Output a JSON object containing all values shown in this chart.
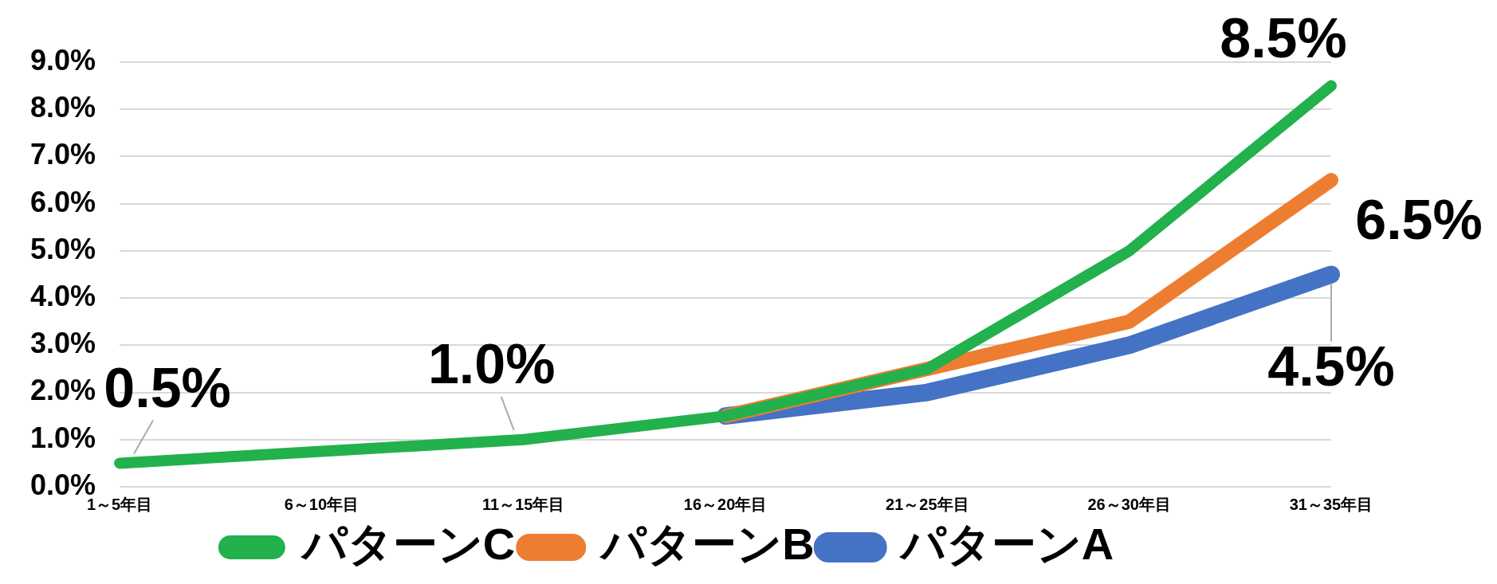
{
  "chart_data": {
    "type": "line",
    "categories": [
      "1～5年目",
      "6～10年目",
      "11～15年目",
      "16～20年目",
      "21～25年目",
      "26～30年目",
      "31～35年目"
    ],
    "series": [
      {
        "name": "パターンA",
        "color": "#4472c4",
        "values": [
          null,
          null,
          null,
          1.5,
          2.0,
          3.0,
          4.5
        ],
        "value_labels": [
          null,
          null,
          null,
          null,
          null,
          null,
          "4.5%"
        ]
      },
      {
        "name": "パターンB",
        "color": "#ed7d31",
        "values": [
          null,
          null,
          null,
          1.5,
          2.5,
          3.5,
          6.5
        ],
        "value_labels": [
          null,
          null,
          null,
          null,
          null,
          null,
          "6.5%"
        ]
      },
      {
        "name": "パターンC",
        "color": "#22b14c",
        "values": [
          0.5,
          0.75,
          1.0,
          1.5,
          2.5,
          5.0,
          8.5
        ],
        "value_labels": [
          "0.5%",
          null,
          "1.0%",
          null,
          null,
          null,
          "8.5%"
        ]
      }
    ],
    "ylim": [
      0,
      9
    ],
    "yticks": [
      {
        "value": 0,
        "label": "0.0%"
      },
      {
        "value": 1,
        "label": "1.0%"
      },
      {
        "value": 2,
        "label": "2.0%"
      },
      {
        "value": 3,
        "label": "3.0%"
      },
      {
        "value": 4,
        "label": "4.0%"
      },
      {
        "value": 5,
        "label": "5.0%"
      },
      {
        "value": 6,
        "label": "6.0%"
      },
      {
        "value": 7,
        "label": "7.0%"
      },
      {
        "value": 8,
        "label": "8.0%"
      },
      {
        "value": 9,
        "label": "9.0%"
      }
    ],
    "grid": "y",
    "legend": "bottom",
    "marker": "none",
    "line_style": "solid"
  }
}
